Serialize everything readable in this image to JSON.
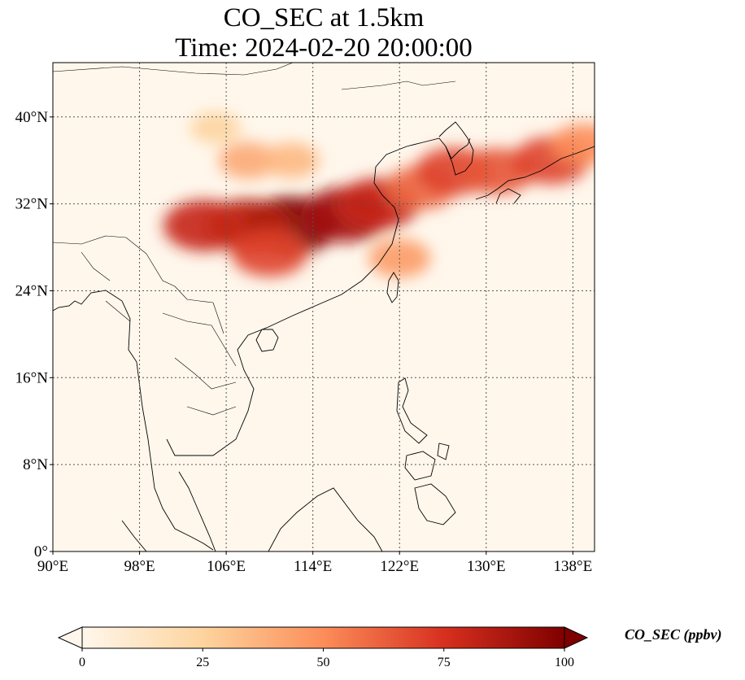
{
  "chart_data": {
    "type": "heatmap",
    "title_line1": "CO_SEC at 1.5km",
    "title_line2": "Time: 2024-02-20 20:00:00",
    "variable": "CO_SEC",
    "units": "ppbv",
    "colorbar_label": "CO_SEC (ppbv)",
    "colormap": "OrRd",
    "colorbar_extend": "both",
    "colorbar_range": [
      0,
      100
    ],
    "colorbar_ticks": [
      {
        "value": 0,
        "label": "0"
      },
      {
        "value": 25,
        "label": "25"
      },
      {
        "value": 50,
        "label": "50"
      },
      {
        "value": 75,
        "label": "75"
      },
      {
        "value": 100,
        "label": "100"
      }
    ],
    "lon_range": [
      90,
      140
    ],
    "lat_range": [
      0,
      45
    ],
    "x_ticks": [
      {
        "value": 90,
        "label": "90°E"
      },
      {
        "value": 98,
        "label": "98°E"
      },
      {
        "value": 106,
        "label": "106°E"
      },
      {
        "value": 114,
        "label": "114°E"
      },
      {
        "value": 122,
        "label": "122°E"
      },
      {
        "value": 130,
        "label": "130°E"
      },
      {
        "value": 138,
        "label": "138°E"
      }
    ],
    "y_ticks": [
      {
        "value": 0,
        "label": "0°"
      },
      {
        "value": 8,
        "label": "8°N"
      },
      {
        "value": 16,
        "label": "16°N"
      },
      {
        "value": 24,
        "label": "24°N"
      },
      {
        "value": 32,
        "label": "32°N"
      },
      {
        "value": 40,
        "label": "40°N"
      }
    ],
    "grid": true,
    "plumes": [
      {
        "lon": 112,
        "lat": 30,
        "value": 100
      },
      {
        "lon": 108,
        "lat": 30,
        "value": 85
      },
      {
        "lon": 104,
        "lat": 30,
        "value": 80
      },
      {
        "lon": 117,
        "lat": 31,
        "value": 90
      },
      {
        "lon": 120,
        "lat": 32,
        "value": 80
      },
      {
        "lon": 110,
        "lat": 27.5,
        "value": 70
      },
      {
        "lon": 124,
        "lat": 33.5,
        "value": 60
      },
      {
        "lon": 127,
        "lat": 35,
        "value": 70
      },
      {
        "lon": 131,
        "lat": 35,
        "value": 65
      },
      {
        "lon": 136,
        "lat": 36,
        "value": 70
      },
      {
        "lon": 139,
        "lat": 37.5,
        "value": 50
      },
      {
        "lon": 108,
        "lat": 36,
        "value": 40
      },
      {
        "lon": 112,
        "lat": 36,
        "value": 35
      },
      {
        "lon": 105,
        "lat": 39,
        "value": 25
      },
      {
        "lon": 122,
        "lat": 27,
        "value": 45
      }
    ]
  }
}
